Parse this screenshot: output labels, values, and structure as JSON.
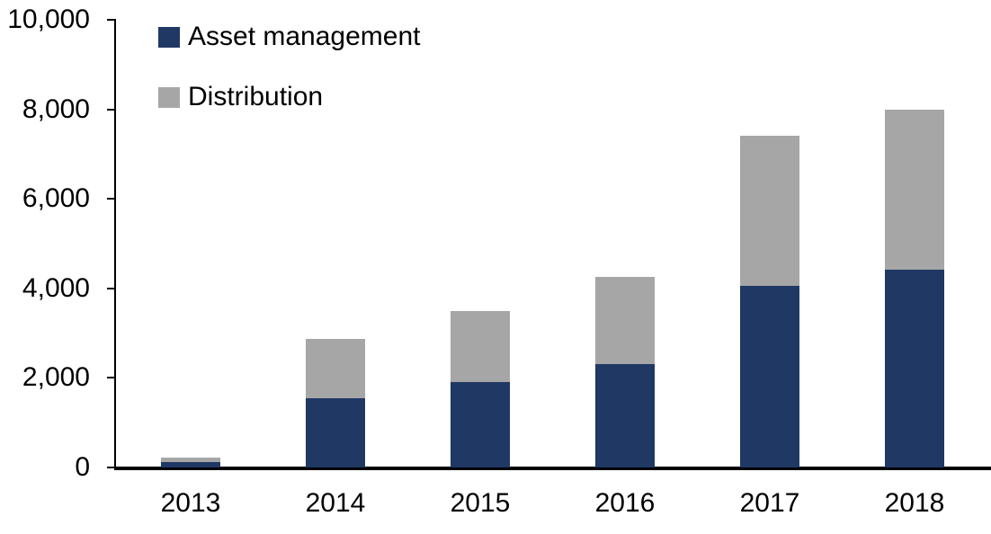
{
  "chart_data": {
    "type": "bar",
    "stacked": true,
    "title": "",
    "xlabel": "",
    "ylabel": "",
    "categories": [
      "2013",
      "2014",
      "2015",
      "2016",
      "2017",
      "2018"
    ],
    "series": [
      {
        "name": "Asset management",
        "color": "#1F3864",
        "values": [
          120,
          1550,
          1900,
          2310,
          4050,
          4420
        ]
      },
      {
        "name": "Distribution",
        "color": "#A6A6A6",
        "values": [
          100,
          1320,
          1600,
          1940,
          3350,
          3580
        ]
      }
    ],
    "totals": [
      220,
      2870,
      3500,
      4250,
      7400,
      8000
    ],
    "ylim": [
      0,
      10000
    ],
    "ytick_interval": 2000,
    "ytick_labels": [
      "0",
      "2,000",
      "4,000",
      "6,000",
      "8,000",
      "10,000"
    ],
    "grid": false,
    "legend_position": "top-left-inside",
    "axis_color": "#000000"
  }
}
